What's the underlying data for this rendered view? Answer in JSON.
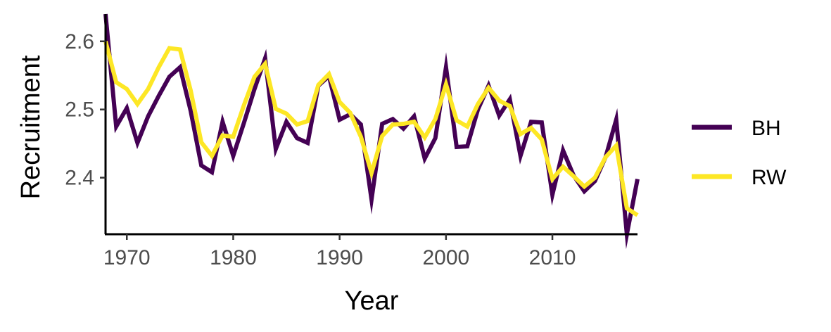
{
  "chart_data": {
    "type": "line",
    "title": "",
    "xlabel": "Year",
    "ylabel": "Recruitment",
    "xlim": [
      1968,
      2018
    ],
    "ylim": [
      2.317,
      2.64
    ],
    "x_ticks": [
      1970,
      1980,
      1990,
      2000,
      2010
    ],
    "x_tick_labels": [
      "1970",
      "1980",
      "1990",
      "2000",
      "2010"
    ],
    "y_ticks": [
      2.4,
      2.5,
      2.6
    ],
    "y_tick_labels": [
      "2.4",
      "2.5",
      "2.6"
    ],
    "grid": false,
    "legend_position": "right",
    "x": [
      1968,
      1969,
      1970,
      1971,
      1972,
      1973,
      1974,
      1975,
      1976,
      1977,
      1978,
      1979,
      1980,
      1981,
      1982,
      1983,
      1984,
      1985,
      1986,
      1987,
      1988,
      1989,
      1990,
      1991,
      1992,
      1993,
      1994,
      1995,
      1996,
      1997,
      1998,
      1999,
      2000,
      2001,
      2002,
      2003,
      2004,
      2005,
      2006,
      2007,
      2008,
      2009,
      2010,
      2011,
      2012,
      2013,
      2014,
      2015,
      2016,
      2017,
      2018
    ],
    "series": [
      {
        "name": "BH",
        "color": "#440154",
        "values": [
          2.64,
          2.475,
          2.502,
          2.451,
          2.49,
          2.52,
          2.548,
          2.562,
          2.498,
          2.418,
          2.408,
          2.482,
          2.432,
          2.48,
          2.53,
          2.575,
          2.442,
          2.482,
          2.458,
          2.451,
          2.535,
          2.549,
          2.485,
          2.493,
          2.478,
          2.368,
          2.479,
          2.486,
          2.472,
          2.49,
          2.428,
          2.458,
          2.562,
          2.445,
          2.446,
          2.5,
          2.535,
          2.491,
          2.515,
          2.432,
          2.482,
          2.481,
          2.375,
          2.44,
          2.403,
          2.38,
          2.395,
          2.43,
          2.485,
          2.317,
          2.398
        ]
      },
      {
        "name": "RW",
        "color": "#FDE725",
        "values": [
          2.6,
          2.54,
          2.53,
          2.508,
          2.53,
          2.562,
          2.59,
          2.588,
          2.528,
          2.452,
          2.432,
          2.462,
          2.46,
          2.506,
          2.548,
          2.567,
          2.501,
          2.494,
          2.478,
          2.483,
          2.536,
          2.552,
          2.511,
          2.495,
          2.46,
          2.407,
          2.461,
          2.478,
          2.479,
          2.482,
          2.459,
          2.486,
          2.537,
          2.484,
          2.475,
          2.508,
          2.532,
          2.513,
          2.505,
          2.464,
          2.473,
          2.456,
          2.398,
          2.416,
          2.402,
          2.387,
          2.4,
          2.43,
          2.447,
          2.355,
          2.345
        ]
      }
    ]
  }
}
